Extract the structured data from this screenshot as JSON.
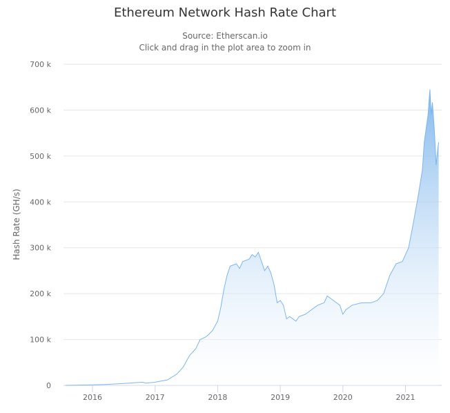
{
  "chart_data": {
    "type": "area",
    "title": "Ethereum Network Hash Rate Chart",
    "subtitle": [
      "Source: Etherscan.io",
      "Click and drag in the plot area to zoom in"
    ],
    "xlabel": "",
    "ylabel": "Hash Rate (GH/s)",
    "xlim": [
      2015.57,
      2021.55
    ],
    "ylim": [
      0,
      700000
    ],
    "x_ticks": [
      2016,
      2017,
      2018,
      2019,
      2020,
      2021
    ],
    "x_tick_labels": [
      "2016",
      "2017",
      "2018",
      "2019",
      "2020",
      "2021"
    ],
    "y_ticks": [
      0,
      100000,
      200000,
      300000,
      400000,
      500000,
      600000,
      700000
    ],
    "y_tick_labels": [
      "0",
      "100 k",
      "200 k",
      "300 k",
      "400 k",
      "500 k",
      "600 k",
      "700 k"
    ],
    "grid": "horizontal",
    "legend": "none",
    "colors": {
      "line": "#7cb5ec",
      "fill_top": "#7cb5ec",
      "fill_bottom": "#ffffff"
    },
    "x": [
      2015.57,
      2016.0,
      2016.2,
      2016.5,
      2016.8,
      2016.85,
      2017.0,
      2017.2,
      2017.35,
      2017.45,
      2017.55,
      2017.65,
      2017.72,
      2017.8,
      2017.85,
      2017.92,
      2018.0,
      2018.05,
      2018.1,
      2018.15,
      2018.2,
      2018.3,
      2018.35,
      2018.4,
      2018.5,
      2018.55,
      2018.6,
      2018.65,
      2018.7,
      2018.75,
      2018.8,
      2018.85,
      2018.9,
      2018.95,
      2019.0,
      2019.05,
      2019.1,
      2019.15,
      2019.25,
      2019.3,
      2019.4,
      2019.5,
      2019.6,
      2019.7,
      2019.75,
      2019.85,
      2019.95,
      2020.0,
      2020.05,
      2020.15,
      2020.3,
      2020.45,
      2020.55,
      2020.65,
      2020.75,
      2020.85,
      2020.95,
      2021.0,
      2021.05,
      2021.12,
      2021.2,
      2021.27,
      2021.3,
      2021.36,
      2021.39,
      2021.41,
      2021.43,
      2021.46,
      2021.49,
      2021.51,
      2021.53
    ],
    "values": [
      0,
      1000,
      2000,
      4000,
      7000,
      5000,
      7000,
      12000,
      25000,
      40000,
      65000,
      80000,
      100000,
      105000,
      110000,
      120000,
      140000,
      170000,
      210000,
      240000,
      260000,
      265000,
      255000,
      270000,
      275000,
      285000,
      280000,
      290000,
      270000,
      250000,
      260000,
      245000,
      220000,
      180000,
      185000,
      175000,
      145000,
      150000,
      140000,
      150000,
      155000,
      165000,
      175000,
      180000,
      195000,
      185000,
      175000,
      155000,
      165000,
      175000,
      180000,
      180000,
      185000,
      200000,
      240000,
      265000,
      270000,
      285000,
      300000,
      350000,
      410000,
      470000,
      530000,
      590000,
      645000,
      590000,
      617000,
      560000,
      480000,
      510000,
      530000
    ]
  }
}
